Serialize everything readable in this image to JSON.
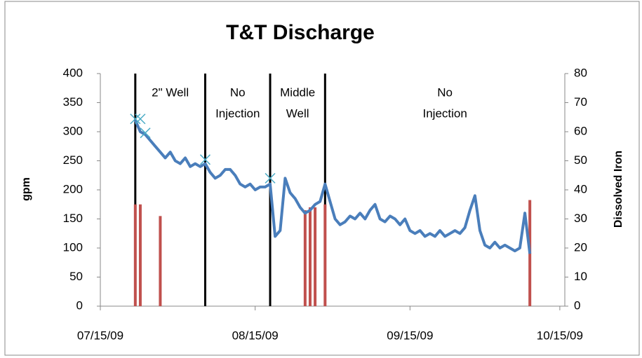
{
  "chart_data": {
    "type": "line",
    "title": "T&T Discharge",
    "ylabel": "gpm",
    "y2label": "Dissolved Iron",
    "xlim": [
      "07/15/09",
      "10/16/09"
    ],
    "xticks": [
      "07/15/09",
      "08/15/09",
      "09/15/09",
      "10/15/09"
    ],
    "ylim": [
      0,
      400
    ],
    "yticks": [
      0,
      50,
      100,
      150,
      200,
      250,
      300,
      350,
      400
    ],
    "y2lim": [
      0,
      80
    ],
    "y2ticks": [
      0,
      10,
      20,
      30,
      40,
      50,
      60,
      70,
      80
    ],
    "grid": false,
    "phases": [
      {
        "start": "07/22/09",
        "text": [
          "2\" Well"
        ]
      },
      {
        "start": "08/05/09",
        "text": [
          "No",
          "Injection"
        ]
      },
      {
        "start": "08/18/09",
        "text": [
          "Middle",
          "Well"
        ]
      },
      {
        "start": "08/29/09",
        "text": [
          "No",
          "Injection"
        ]
      }
    ],
    "series": [
      {
        "type": "line",
        "color": "#4a7ebb",
        "x": [
          "07/22/09",
          "07/23/09",
          "07/24/09",
          "07/25/09",
          "07/26/09",
          "07/27/09",
          "07/28/09",
          "07/29/09",
          "07/30/09",
          "07/31/09",
          "08/01/09",
          "08/02/09",
          "08/03/09",
          "08/04/09",
          "08/05/09",
          "08/06/09",
          "08/07/09",
          "08/08/09",
          "08/09/09",
          "08/10/09",
          "08/11/09",
          "08/12/09",
          "08/13/09",
          "08/14/09",
          "08/15/09",
          "08/16/09",
          "08/17/09",
          "08/18/09",
          "08/19/09",
          "08/20/09",
          "08/21/09",
          "08/22/09",
          "08/23/09",
          "08/24/09",
          "08/25/09",
          "08/26/09",
          "08/27/09",
          "08/28/09",
          "08/29/09",
          "08/30/09",
          "08/31/09",
          "09/01/09",
          "09/02/09",
          "09/03/09",
          "09/04/09",
          "09/05/09",
          "09/06/09",
          "09/07/09",
          "09/08/09",
          "09/09/09",
          "09/10/09",
          "09/11/09",
          "09/12/09",
          "09/13/09",
          "09/14/09",
          "09/15/09",
          "09/16/09",
          "09/17/09",
          "09/18/09",
          "09/19/09",
          "09/20/09",
          "09/21/09",
          "09/22/09",
          "09/23/09",
          "09/24/09",
          "09/25/09",
          "09/26/09",
          "09/27/09",
          "09/28/09",
          "09/29/09",
          "09/30/09",
          "10/01/09",
          "10/02/09",
          "10/03/09",
          "10/04/09",
          "10/05/09",
          "10/06/09",
          "10/07/09",
          "10/08/09",
          "10/09/09"
        ],
        "values": [
          320,
          300,
          295,
          285,
          275,
          265,
          255,
          265,
          250,
          245,
          255,
          240,
          245,
          240,
          245,
          230,
          220,
          225,
          235,
          235,
          225,
          210,
          205,
          210,
          200,
          205,
          205,
          210,
          120,
          130,
          220,
          195,
          185,
          170,
          160,
          165,
          175,
          180,
          210,
          180,
          150,
          140,
          145,
          155,
          150,
          160,
          150,
          165,
          175,
          150,
          145,
          155,
          150,
          140,
          150,
          130,
          125,
          130,
          120,
          125,
          120,
          130,
          120,
          125,
          130,
          125,
          135,
          165,
          190,
          130,
          105,
          100,
          110,
          100,
          105,
          100,
          95,
          100,
          160,
          90
        ]
      },
      {
        "type": "bar",
        "axis": "y2",
        "color": "#c0504d",
        "x": [
          "07/22/09",
          "07/23/09",
          "07/27/09",
          "08/25/09",
          "08/26/09",
          "08/27/09",
          "08/29/09",
          "10/09/09"
        ],
        "values": [
          35,
          35,
          31,
          33,
          34,
          34,
          35,
          36.5
        ]
      },
      {
        "type": "scatter",
        "color": "#4bacc6",
        "x": [
          "07/22/09",
          "07/23/09",
          "07/24/09",
          "08/05/09",
          "08/18/09"
        ],
        "values": [
          322,
          322,
          298,
          252,
          220
        ]
      }
    ]
  }
}
